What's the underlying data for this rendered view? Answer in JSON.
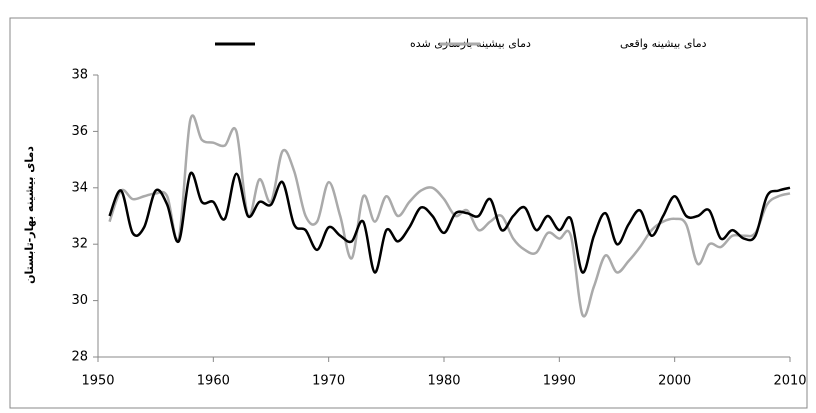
{
  "chart_data": {
    "type": "line",
    "y_label": "دمای بیشینه بهار-تابستان",
    "x": [
      1951,
      1952,
      1953,
      1954,
      1955,
      1956,
      1957,
      1958,
      1959,
      1960,
      1961,
      1962,
      1963,
      1964,
      1965,
      1966,
      1967,
      1968,
      1969,
      1970,
      1971,
      1972,
      1973,
      1974,
      1975,
      1976,
      1977,
      1978,
      1979,
      1980,
      1981,
      1982,
      1983,
      1984,
      1985,
      1986,
      1987,
      1988,
      1989,
      1990,
      1991,
      1992,
      1993,
      1994,
      1995,
      1996,
      1997,
      1998,
      1999,
      2000,
      2001,
      2002,
      2003,
      2004,
      2005,
      2006,
      2007,
      2008,
      2009,
      2010
    ],
    "series": [
      {
        "name": "دمای بیشینه بازسازی شده",
        "color": "#000000",
        "values": [
          33.0,
          33.9,
          32.4,
          32.6,
          33.9,
          33.4,
          32.1,
          34.5,
          33.5,
          33.5,
          32.9,
          34.5,
          33.0,
          33.5,
          33.4,
          34.2,
          32.7,
          32.5,
          31.8,
          32.6,
          32.3,
          32.1,
          32.8,
          31.0,
          32.5,
          32.1,
          32.6,
          33.3,
          33.0,
          32.4,
          33.1,
          33.1,
          33.0,
          33.6,
          32.5,
          33.0,
          33.3,
          32.5,
          33.0,
          32.5,
          32.9,
          31.0,
          32.3,
          33.1,
          32.0,
          32.7,
          33.2,
          32.3,
          33.0,
          33.7,
          33.0,
          33.0,
          33.2,
          32.2,
          32.5,
          32.2,
          32.3,
          33.7,
          33.9,
          34.0
        ]
      },
      {
        "name": "دمای بیشینه واقعی",
        "color": "#aaaaaa",
        "values": [
          32.8,
          33.9,
          33.6,
          33.7,
          33.8,
          33.7,
          32.2,
          36.4,
          35.7,
          35.6,
          35.5,
          36.0,
          33.0,
          34.3,
          33.5,
          35.3,
          34.6,
          33.0,
          32.8,
          34.2,
          33.0,
          31.5,
          33.7,
          32.8,
          33.7,
          33.0,
          33.5,
          33.9,
          34.0,
          33.6,
          33.0,
          33.2,
          32.5,
          32.8,
          33.0,
          32.2,
          31.8,
          31.7,
          32.4,
          32.2,
          32.3,
          29.5,
          30.5,
          31.6,
          31.0,
          31.4,
          31.9,
          32.5,
          32.8,
          32.9,
          32.7,
          31.3,
          32.0,
          31.9,
          32.3,
          32.3,
          32.4,
          33.4,
          33.7,
          33.8
        ]
      }
    ],
    "xlim": [
      1950,
      2010
    ],
    "xticks": [
      1950,
      1960,
      1970,
      1980,
      1990,
      2000,
      2010
    ],
    "ylim": [
      28,
      38
    ],
    "yticks": [
      28,
      30,
      32,
      34,
      36,
      38
    ]
  }
}
